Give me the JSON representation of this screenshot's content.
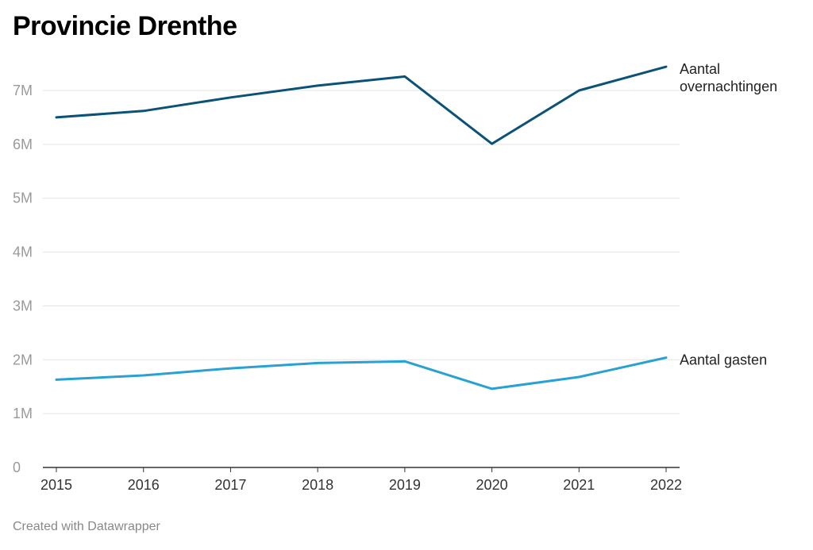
{
  "header": {
    "title": "Provincie Drenthe"
  },
  "footer": {
    "credit": "Created with Datawrapper"
  },
  "chart_data": {
    "type": "line",
    "title": "Provincie Drenthe",
    "xlabel": "",
    "ylabel": "",
    "x": [
      2015,
      2016,
      2017,
      2018,
      2019,
      2020,
      2021,
      2022
    ],
    "ylim": [
      0,
      7000000
    ],
    "yticks": [
      {
        "value": 0,
        "label": "0"
      },
      {
        "value": 1000000,
        "label": "1M"
      },
      {
        "value": 2000000,
        "label": "2M"
      },
      {
        "value": 3000000,
        "label": "3M"
      },
      {
        "value": 4000000,
        "label": "4M"
      },
      {
        "value": 5000000,
        "label": "5M"
      },
      {
        "value": 6000000,
        "label": "6M"
      },
      {
        "value": 7000000,
        "label": "7M"
      }
    ],
    "series": [
      {
        "name": "Aantal overnachtingen",
        "label_lines": [
          "Aantal",
          "overnachtingen"
        ],
        "color": "#0b5278",
        "values": [
          6500000,
          6620000,
          6870000,
          7090000,
          7260000,
          6010000,
          7000000,
          7440000
        ]
      },
      {
        "name": "Aantal gasten",
        "label_lines": [
          "Aantal gasten"
        ],
        "color": "#2aa1d3",
        "values": [
          1630000,
          1710000,
          1840000,
          1940000,
          1970000,
          1460000,
          1680000,
          2040000
        ]
      }
    ],
    "grid": true
  }
}
